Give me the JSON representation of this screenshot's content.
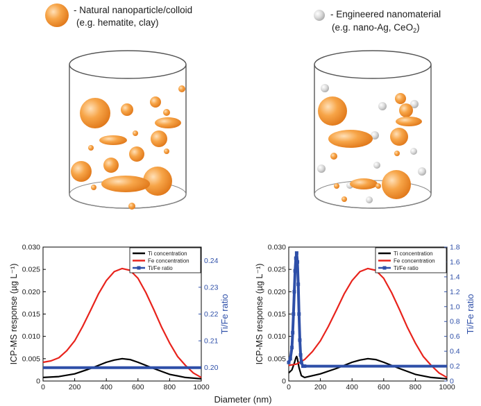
{
  "legend_top": {
    "natural": {
      "label": "- Natural nanoparticle/colloid",
      "example": "(e.g. hematite, clay)"
    },
    "engineered": {
      "label": "- Engineered nanomaterial",
      "example_prefix": "(e.g. nano-Ag, CeO",
      "example_sub": "2",
      "example_suffix": ")"
    }
  },
  "colors": {
    "natural_particle": "#f39a3a",
    "engineered_particle": "#d0d0d0",
    "ti": "#000000",
    "fe": "#e8231c",
    "ratio": "#2e4fa8",
    "right_axis": "#2e4fa8"
  },
  "shared_xlabel": "Diameter (nm)",
  "chart_data": [
    {
      "type": "line",
      "title": "",
      "xlabel": "Diameter (nm)",
      "ylabel": "ICP-MS response (µg L⁻¹)",
      "y2label": "Ti/Fe ratio",
      "xlim": [
        0,
        1000
      ],
      "ylim": [
        0,
        0.03
      ],
      "y2lim": [
        0.195,
        0.245
      ],
      "xticks": [
        "0",
        "200",
        "400",
        "600",
        "800",
        "1000"
      ],
      "yticks": [
        "0",
        "0.005",
        "0.010",
        "0.015",
        "0.020",
        "0.025",
        "0.030"
      ],
      "y2ticks": [
        "0.20",
        "0.21",
        "0.22",
        "0.23",
        "0.24"
      ],
      "legend_position": "top-right",
      "series": [
        {
          "name": "Ti concentration",
          "axis": "left",
          "color": "#000000",
          "x": [
            0,
            100,
            200,
            300,
            400,
            450,
            500,
            550,
            600,
            700,
            800,
            900,
            1000
          ],
          "y": [
            0.0008,
            0.001,
            0.0016,
            0.0028,
            0.0042,
            0.0047,
            0.005,
            0.0048,
            0.0042,
            0.0028,
            0.0015,
            0.0008,
            0.0005
          ]
        },
        {
          "name": "Fe concentration",
          "axis": "left",
          "color": "#e8231c",
          "x": [
            0,
            50,
            100,
            150,
            200,
            250,
            300,
            350,
            400,
            450,
            500,
            550,
            600,
            650,
            700,
            750,
            800,
            850,
            900,
            950,
            1000
          ],
          "y": [
            0.0042,
            0.0045,
            0.0052,
            0.0068,
            0.009,
            0.0122,
            0.0158,
            0.0195,
            0.0225,
            0.0245,
            0.0252,
            0.0248,
            0.023,
            0.0198,
            0.016,
            0.012,
            0.0085,
            0.0055,
            0.0035,
            0.0018,
            0.0008
          ]
        },
        {
          "name": "Ti/Fe ratio",
          "axis": "right",
          "color": "#2e4fa8",
          "x": [
            0,
            1000
          ],
          "y": [
            0.2,
            0.2
          ]
        }
      ]
    },
    {
      "type": "line",
      "title": "",
      "xlabel": "Diameter (nm)",
      "ylabel": "ICP-MS response (µg L⁻¹)",
      "y2label": "Ti/Fe ratio",
      "xlim": [
        0,
        1000
      ],
      "ylim": [
        0,
        0.03
      ],
      "y2lim": [
        0,
        1.8
      ],
      "xticks": [
        "0",
        "200",
        "400",
        "600",
        "800",
        "1000"
      ],
      "yticks": [
        "0",
        "0.005",
        "0.010",
        "0.015",
        "0.020",
        "0.025",
        "0.030"
      ],
      "y2ticks": [
        "0",
        "0.2",
        "0.4",
        "0.6",
        "0.8",
        "1.0",
        "1.2",
        "1.4",
        "1.6",
        "1.8"
      ],
      "legend_position": "top-right",
      "series": [
        {
          "name": "Ti concentration",
          "axis": "left",
          "color": "#000000",
          "x": [
            0,
            20,
            35,
            45,
            50,
            55,
            65,
            80,
            100,
            200,
            300,
            400,
            450,
            500,
            550,
            600,
            700,
            800,
            900,
            1000
          ],
          "y": [
            0.0018,
            0.0025,
            0.004,
            0.0052,
            0.0055,
            0.005,
            0.003,
            0.0012,
            0.0008,
            0.0016,
            0.0028,
            0.0042,
            0.0047,
            0.005,
            0.0048,
            0.0042,
            0.0028,
            0.0015,
            0.0008,
            0.0005
          ]
        },
        {
          "name": "Fe concentration",
          "axis": "left",
          "color": "#e8231c",
          "x": [
            0,
            50,
            100,
            150,
            200,
            250,
            300,
            350,
            400,
            450,
            500,
            550,
            600,
            650,
            700,
            750,
            800,
            850,
            900,
            950,
            1000
          ],
          "y": [
            0.0035,
            0.0038,
            0.0048,
            0.0066,
            0.009,
            0.0122,
            0.0158,
            0.0195,
            0.0225,
            0.0245,
            0.0252,
            0.0248,
            0.023,
            0.0198,
            0.016,
            0.012,
            0.0085,
            0.0055,
            0.0035,
            0.0018,
            0.0008
          ]
        },
        {
          "name": "Ti/Fe ratio",
          "axis": "right",
          "color": "#2e4fa8",
          "x": [
            0,
            10,
            20,
            25,
            30,
            35,
            40,
            45,
            50,
            55,
            60,
            65,
            70,
            75,
            80,
            90,
            100,
            1000
          ],
          "y": [
            0.25,
            0.3,
            0.45,
            0.65,
            0.9,
            1.2,
            1.48,
            1.65,
            1.72,
            1.6,
            1.3,
            0.9,
            0.55,
            0.35,
            0.25,
            0.2,
            0.2,
            0.2
          ]
        }
      ]
    }
  ]
}
